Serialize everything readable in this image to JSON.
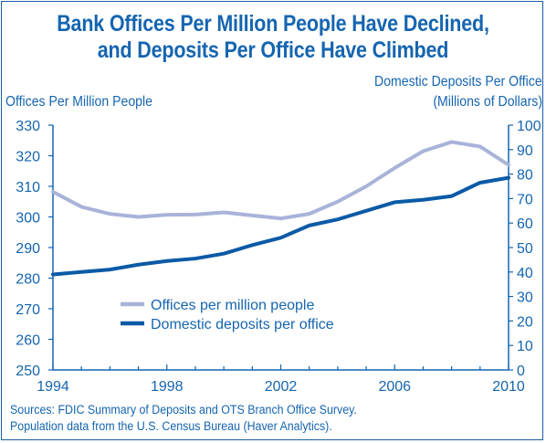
{
  "title_line1": "Bank Offices Per Million People Have Declined,",
  "title_line2": "and Deposits Per Office Have Climbed",
  "left_axis_title": "Offices Per Million People",
  "right_axis_title_line1": "Domestic Deposits Per Office",
  "right_axis_title_line2": "(Millions of Dollars)",
  "sources_line1": "Sources: FDIC Summary of Deposits and OTS Branch Office Survey.",
  "sources_line2": "Population data from the U.S. Census Bureau (Haver Analytics).",
  "colors": {
    "accent": "#1565b0",
    "offices_series": "#a9b3d9",
    "deposits_series": "#0b5aa6"
  },
  "chart_data": {
    "type": "line",
    "title": "Bank Offices Per Million People Have Declined, and Deposits Per Office Have Climbed",
    "x": [
      1994,
      1995,
      1996,
      1997,
      1998,
      1999,
      2000,
      2001,
      2002,
      2003,
      2004,
      2005,
      2006,
      2007,
      2008,
      2009,
      2010
    ],
    "xlim": [
      1994,
      2010
    ],
    "x_ticks": [
      "1994",
      "1998",
      "2002",
      "2006",
      "2010"
    ],
    "left_axis": {
      "label": "Offices Per Million People",
      "ylim": [
        250,
        330
      ],
      "ticks": [
        "330",
        "320",
        "310",
        "300",
        "290",
        "280",
        "270",
        "260",
        "250"
      ]
    },
    "right_axis": {
      "label": "Domestic Deposits Per Office (Millions of Dollars)",
      "ylim": [
        0,
        100
      ],
      "ticks": [
        "100",
        "90",
        "80",
        "70",
        "60",
        "50",
        "40",
        "30",
        "20",
        "10",
        "0"
      ]
    },
    "series": [
      {
        "name": "Offices per million people",
        "axis": "left",
        "values": [
          308.2,
          303.3,
          301.0,
          300.0,
          300.7,
          300.8,
          301.5,
          300.5,
          299.5,
          301.0,
          305.0,
          310.0,
          316.0,
          321.5,
          324.5,
          323.0,
          317.0
        ]
      },
      {
        "name": "Domestic deposits per office",
        "axis": "right",
        "values": [
          39,
          40,
          41,
          43,
          44.5,
          45.5,
          47.5,
          51,
          54,
          59,
          61.5,
          65,
          68.5,
          69.5,
          71,
          76.5,
          78.5
        ]
      }
    ],
    "legend": {
      "placement": "lower-left",
      "entries": [
        "Offices per million people",
        "Domestic deposits per office"
      ]
    },
    "grid": false
  }
}
